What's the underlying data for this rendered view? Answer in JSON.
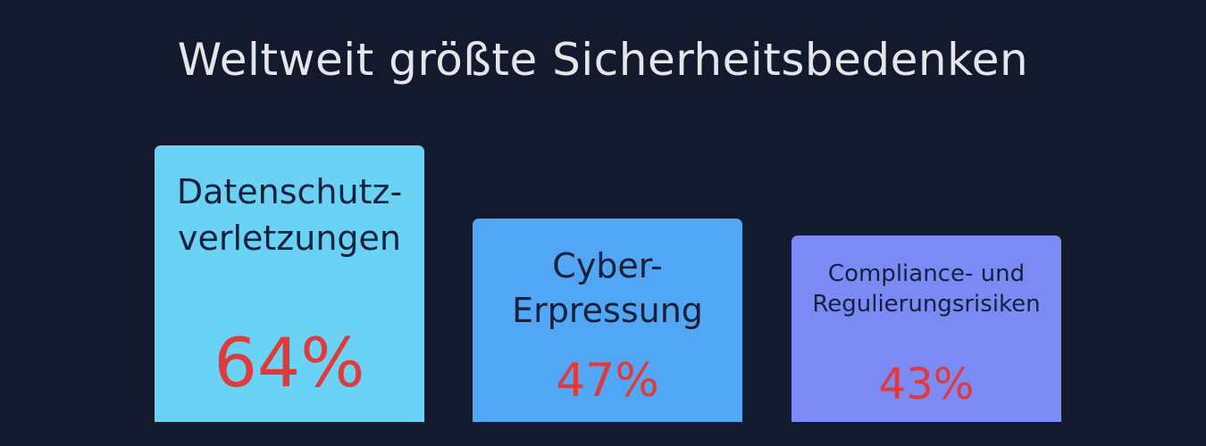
{
  "chart_data": {
    "type": "bar",
    "title": "Weltweit größte Sicherheitsbedenken",
    "categories": [
      [
        "Datenschutz-",
        "verletzungen"
      ],
      [
        "Cyber-",
        "Erpressung"
      ],
      [
        "Compliance- und",
        "Regulierungsrisiken"
      ]
    ],
    "values": [
      64,
      47,
      43
    ],
    "value_labels": [
      "64%",
      "47%",
      "43%"
    ],
    "colors": [
      "#69d2f5",
      "#51a6f5",
      "#7b8af5"
    ],
    "value_color": "#e03a3a",
    "ylim": [
      0,
      64
    ]
  }
}
